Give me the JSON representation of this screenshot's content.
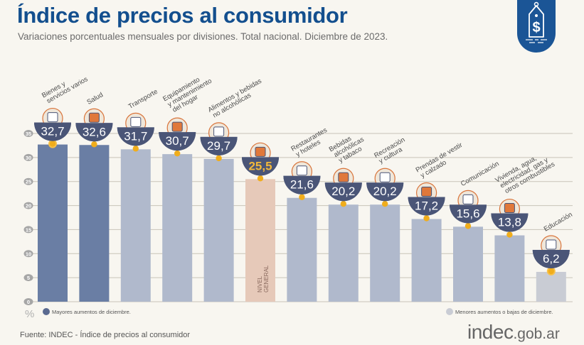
{
  "header": {
    "title": "Índice de precios al consumidor",
    "subtitle": "Variaciones porcentuales mensuales por divisiones. Total nacional. Diciembre de 2023."
  },
  "badge": {
    "icon": "price-tag-dollar-icon",
    "color": "#1b5596"
  },
  "colors": {
    "top_bar": "#6a7ea4",
    "low_bar": "#b0b9cc",
    "lowest_bar": "#c9ccd4",
    "general_bar": "#e6c9b9",
    "value_bubble": "#4a5577",
    "value_text": "#ffffff",
    "general_value_text": "#f2b83a",
    "marker": "#f0ad1c",
    "title": "#134f8e",
    "grid": "#c8c3b8"
  },
  "legend": {
    "high": {
      "label": "Mayores aumentos de diciembre.",
      "color": "#5a6a90"
    },
    "low": {
      "label": "Menores aumentos o bajas de diciembre.",
      "color": "#c9ccd4"
    }
  },
  "footer": {
    "source": "Fuente: INDEC - Índice de precios al consumidor",
    "brand_main": "indec",
    "brand_suffix": ".gob.ar"
  },
  "chart_data": {
    "type": "bar",
    "title": "Índice de precios al consumidor",
    "subtitle": "Variaciones porcentuales mensuales por divisiones. Total nacional. Diciembre de 2023.",
    "xlabel": "",
    "ylabel": "%",
    "ylim": [
      0,
      35
    ],
    "yticks": [
      0,
      5,
      10,
      15,
      20,
      25,
      30,
      35
    ],
    "grid": true,
    "legend_position": "bottom",
    "categories": [
      "Bienes y servicios varios",
      "Salud",
      "Transporte",
      "Equipamiento y mantenimiento del hogar",
      "Alimentos y bebidas no alcohólicas",
      "Nivel general",
      "Restaurantes y hoteles",
      "Bebidas alcohólicas y tabaco",
      "Recreación y cultura",
      "Prendas de vestir y calzado",
      "Comunicación",
      "Vivienda, agua, electricidad, gas y otros combustibles",
      "Educación"
    ],
    "label_lines": [
      [
        "Bienes y",
        "servicios varios"
      ],
      [
        "Salud"
      ],
      [
        "Transporte"
      ],
      [
        "Equipamiento",
        "y mantenimiento",
        "del hogar"
      ],
      [
        "Alimentos y bebidas",
        "no alcohólicas"
      ],
      [
        "NIVEL",
        "GENERAL"
      ],
      [
        "Restaurantes",
        "y hoteles"
      ],
      [
        "Bebidas",
        "alcohólicas",
        "y tabaco"
      ],
      [
        "Recreación",
        "y cultura"
      ],
      [
        "Prendas de vestir",
        "y calzado"
      ],
      [
        "Comunicación"
      ],
      [
        "Vivienda, agua,",
        "electricidad, gas y",
        "otros combustibles"
      ],
      [
        "Educación"
      ]
    ],
    "values": [
      32.7,
      32.6,
      31.7,
      30.7,
      29.7,
      25.5,
      21.6,
      20.2,
      20.2,
      17.2,
      15.6,
      13.8,
      6.2
    ],
    "value_labels": [
      "32,7",
      "32,6",
      "31,7",
      "30,7",
      "29,7",
      "25,5",
      "21,6",
      "20,2",
      "20,2",
      "17,2",
      "15,6",
      "13,8",
      "6,2"
    ],
    "groups": [
      "high",
      "high",
      "low",
      "low",
      "low",
      "general",
      "low",
      "low",
      "low",
      "low",
      "low",
      "low",
      "lowest"
    ],
    "icons": [
      "comb-scissors-icon",
      "first-aid-kit-icon",
      "car-sube-card-icon",
      "washing-machine-icon",
      "food-chicken-icon",
      "shopping-bag-icon",
      "plate-cutlery-icon",
      "bottle-glass-icon",
      "umbrella-sun-icon",
      "tshirt-sandal-icon",
      "smartphone-icon",
      "wrench-lightbulb-icon",
      "notebook-icon"
    ]
  }
}
